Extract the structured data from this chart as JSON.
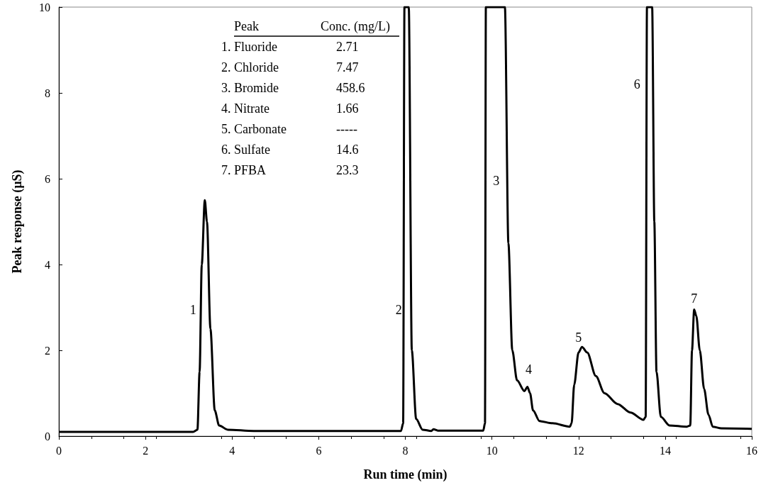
{
  "chart_data": {
    "type": "line",
    "xlabel": "Run time (min)",
    "ylabel": "Peak response (µS)",
    "xlim": [
      0,
      16
    ],
    "xticks": [
      0,
      2,
      4,
      6,
      8,
      10,
      12,
      14,
      16
    ],
    "ylim": [
      0,
      10
    ],
    "yticks": [
      0,
      2,
      4,
      6,
      8,
      10
    ],
    "grid": false,
    "marker": "none",
    "line_style": "solid",
    "series": [
      {
        "color": "#000000",
        "x": [
          0,
          1,
          2,
          3,
          3.1,
          3.2,
          3.25,
          3.3,
          3.37,
          3.42,
          3.5,
          3.6,
          3.7,
          3.9,
          4.5,
          6,
          7.9,
          7.95,
          7.98,
          8.08,
          8.15,
          8.25,
          8.4,
          8.6,
          8.65,
          8.75,
          9.8,
          9.84,
          9.86,
          10.3,
          10.38,
          10.47,
          10.58,
          10.75,
          10.82,
          10.88,
          10.95,
          11.1,
          11.4,
          11.8,
          11.84,
          11.9,
          12.0,
          12.08,
          12.2,
          12.4,
          12.6,
          12.9,
          13.2,
          13.5,
          13.55,
          13.58,
          13.7,
          13.75,
          13.8,
          13.9,
          14.1,
          14.5,
          14.58,
          14.62,
          14.67,
          14.72,
          14.8,
          14.9,
          15.0,
          15.1,
          15.3,
          16
        ],
        "values": [
          0.1,
          0.1,
          0.1,
          0.1,
          0.1,
          0.15,
          1.5,
          4,
          5.5,
          5,
          2.5,
          0.6,
          0.25,
          0.15,
          0.12,
          0.12,
          0.12,
          0.3,
          10,
          10,
          2,
          0.4,
          0.15,
          0.12,
          0.16,
          0.13,
          0.13,
          0.3,
          10,
          10,
          4.5,
          2.0,
          1.3,
          1.05,
          1.15,
          1.0,
          0.6,
          0.35,
          0.3,
          0.22,
          0.3,
          1.2,
          1.95,
          2.08,
          1.95,
          1.4,
          1.0,
          0.75,
          0.55,
          0.38,
          0.45,
          10,
          10,
          5,
          1.5,
          0.45,
          0.25,
          0.22,
          0.25,
          2.0,
          2.95,
          2.8,
          2.0,
          1.1,
          0.5,
          0.22,
          0.18,
          0.17
        ]
      }
    ],
    "annotations": [
      "Peak",
      "Conc. (mg/L)",
      "1. Fluoride",
      "2.71",
      "2. Chloride",
      "7.47",
      "3. Bromide",
      "458.6",
      "4. Nitrate",
      "1.66",
      "5. Carbonate",
      "-----",
      "6. Sulfate",
      "14.6",
      "7. PFBA",
      "23.3",
      "1",
      "2",
      "3",
      "4",
      "5",
      "6",
      "7"
    ]
  }
}
